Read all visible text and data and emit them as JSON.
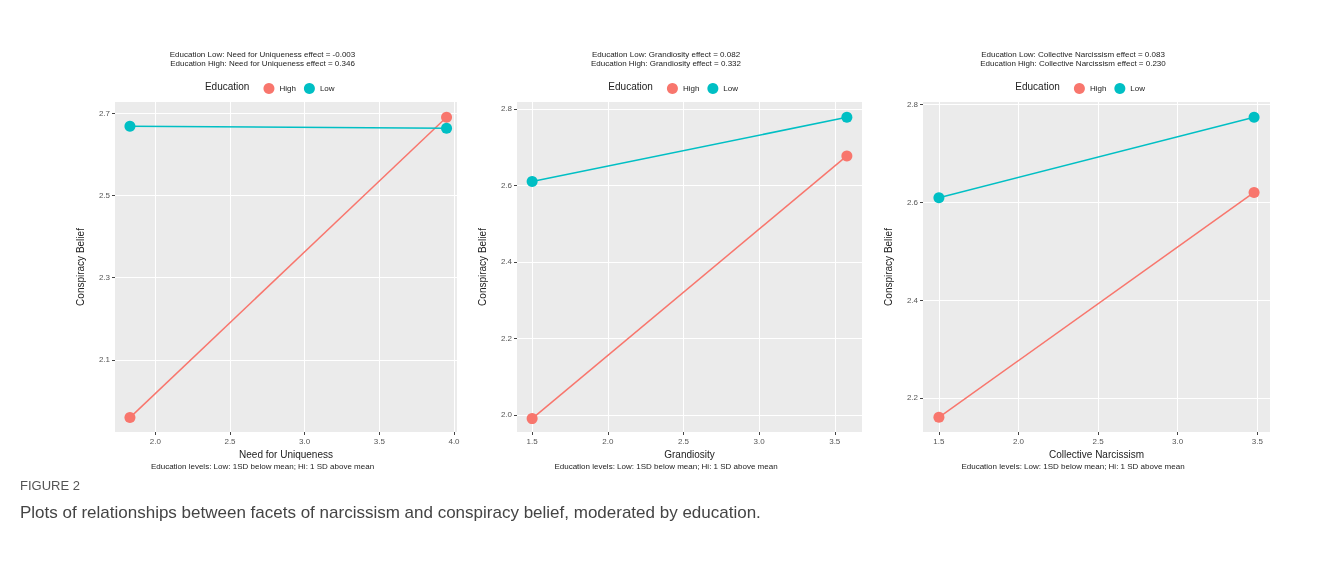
{
  "chart_data": [
    {
      "type": "line",
      "title": "Education Low: Need for Uniqueness effect = -0.003",
      "subtitle": "Education High: Need for Uniqueness effect = 0.346",
      "legend_title": "Education",
      "legend": "top",
      "xlabel": "Need for Uniqueness",
      "ylabel": "Conspiracy Belief",
      "grid": true,
      "marker": "circle",
      "annotations": [
        "Education levels: Low: 1SD below mean; Hi: 1 SD above mean",
        "FIGURE 2",
        "Plots of relationships between facets of narcissism and conspiracy belief, moderated by education."
      ],
      "xlim": [
        1.73,
        4.02
      ],
      "xticks": [
        {
          "value": 2,
          "label": "2.0"
        },
        2.5,
        {
          "value": 3,
          "label": "3.0"
        },
        3.5,
        {
          "value": 4,
          "label": "4.0"
        }
      ],
      "ylim": [
        1.925,
        2.727
      ],
      "yticks": [
        2.1,
        2.3,
        2.5,
        2.7
      ],
      "series": [
        {
          "name": "High",
          "color": "#f8766d",
          "x": [
            1.83,
            3.95
          ],
          "values": [
            1.96,
            2.69
          ]
        },
        {
          "name": "Low",
          "color": "#00bfc4",
          "x": [
            1.83,
            3.95
          ],
          "values": [
            2.668,
            2.663
          ]
        }
      ]
    },
    {
      "type": "line",
      "title": "Education Low: Grandiosity effect = 0.082",
      "subtitle": "Education High: Grandiosity effect = 0.332",
      "legend_title": "Education",
      "legend": "top",
      "xlabel": "Grandiosity",
      "ylabel": "Conspiracy Belief",
      "grid": true,
      "marker": "circle",
      "annotations": [
        "Education levels: Low: 1SD below mean; Hi: 1 SD above mean"
      ],
      "xlim": [
        1.4,
        3.68
      ],
      "xticks": [
        1.5,
        {
          "value": 2,
          "label": "2.0"
        },
        2.5,
        {
          "value": 3,
          "label": "3.0"
        },
        3.5
      ],
      "ylim": [
        1.955,
        2.818
      ],
      "yticks": [
        {
          "value": 2,
          "label": "2.0"
        },
        2.2,
        2.4,
        2.6,
        2.8
      ],
      "series": [
        {
          "name": "High",
          "color": "#f8766d",
          "x": [
            1.5,
            3.58
          ],
          "values": [
            1.99,
            2.677
          ]
        },
        {
          "name": "Low",
          "color": "#00bfc4",
          "x": [
            1.5,
            3.58
          ],
          "values": [
            2.61,
            2.778
          ]
        }
      ]
    },
    {
      "type": "line",
      "title": "Education Low: Collective Narcissism effect = 0.083",
      "subtitle": "Education High: Collective Narcissism effect = 0.230",
      "legend_title": "Education",
      "legend": "top",
      "xlabel": "Collective Narcissism",
      "ylabel": "Conspiracy Belief",
      "grid": true,
      "marker": "circle",
      "annotations": [
        "Education levels: Low: 1SD below mean; Hi: 1 SD above mean"
      ],
      "xlim": [
        1.4,
        3.58
      ],
      "xticks": [
        1.5,
        {
          "value": 2,
          "label": "2.0"
        },
        2.5,
        {
          "value": 3,
          "label": "3.0"
        },
        3.5
      ],
      "ylim": [
        2.13,
        2.805
      ],
      "yticks": [
        2.2,
        2.4,
        2.6,
        2.8
      ],
      "series": [
        {
          "name": "High",
          "color": "#f8766d",
          "x": [
            1.5,
            3.48
          ],
          "values": [
            2.16,
            2.62
          ]
        },
        {
          "name": "Low",
          "color": "#00bfc4",
          "x": [
            1.5,
            3.48
          ],
          "values": [
            2.609,
            2.774
          ]
        }
      ]
    }
  ]
}
